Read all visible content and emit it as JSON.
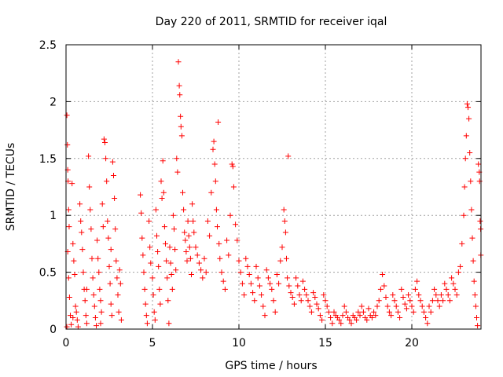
{
  "chart_data": {
    "type": "scatter",
    "title": "Day 220 of 2011, SRMTID for receiver iqal",
    "xlabel": "GPS time / hours",
    "ylabel": "SRMTID / TECUs",
    "xlim": [
      0,
      24
    ],
    "ylim": [
      0,
      2.5
    ],
    "xticks": [
      0,
      5,
      10,
      15,
      20
    ],
    "xtick_labels": [
      "0",
      "5",
      "10",
      "15",
      "20"
    ],
    "yticks": [
      0,
      0.5,
      1,
      1.5,
      2,
      2.5
    ],
    "ytick_labels": [
      "0",
      "0.5",
      "1",
      "1.5",
      "2",
      "2.5"
    ],
    "grid": true,
    "marker": "+",
    "color": "#ff0000",
    "series": [
      {
        "name": "SRMTID",
        "points": [
          [
            0.05,
            1.88
          ],
          [
            0.08,
            1.62
          ],
          [
            0.1,
            1.4
          ],
          [
            0.12,
            1.3
          ],
          [
            0.15,
            1.05
          ],
          [
            0.18,
            0.9
          ],
          [
            0.1,
            0.68
          ],
          [
            0.15,
            0.45
          ],
          [
            0.2,
            0.28
          ],
          [
            0.25,
            0.12
          ],
          [
            0.05,
            0.02
          ],
          [
            0.3,
            0.04
          ],
          [
            0.35,
            1.28
          ],
          [
            0.4,
            0.75
          ],
          [
            0.45,
            0.6
          ],
          [
            0.5,
            0.48
          ],
          [
            0.55,
            0.2
          ],
          [
            0.6,
            0.15
          ],
          [
            0.65,
            0.08
          ],
          [
            0.7,
            0.02
          ],
          [
            0.8,
            1.1
          ],
          [
            0.85,
            0.95
          ],
          [
            0.9,
            0.85
          ],
          [
            0.95,
            0.7
          ],
          [
            1.0,
            0.5
          ],
          [
            1.05,
            0.35
          ],
          [
            1.1,
            0.25
          ],
          [
            1.15,
            0.12
          ],
          [
            1.2,
            0.05
          ],
          [
            1.3,
            1.52
          ],
          [
            1.35,
            1.25
          ],
          [
            1.4,
            1.05
          ],
          [
            1.45,
            0.88
          ],
          [
            1.5,
            0.62
          ],
          [
            1.55,
            0.45
          ],
          [
            1.6,
            0.3
          ],
          [
            1.65,
            0.2
          ],
          [
            1.7,
            0.1
          ],
          [
            1.75,
            0.03
          ],
          [
            1.8,
            0.78
          ],
          [
            1.85,
            0.62
          ],
          [
            1.9,
            0.5
          ],
          [
            1.95,
            0.35
          ],
          [
            2.0,
            0.25
          ],
          [
            2.05,
            0.15
          ],
          [
            2.1,
            1.1
          ],
          [
            2.15,
            0.9
          ],
          [
            2.2,
            1.67
          ],
          [
            2.25,
            1.64
          ],
          [
            2.3,
            1.5
          ],
          [
            2.35,
            1.3
          ],
          [
            2.4,
            0.95
          ],
          [
            2.45,
            0.8
          ],
          [
            2.5,
            0.55
          ],
          [
            2.55,
            0.4
          ],
          [
            2.6,
            0.22
          ],
          [
            2.65,
            0.12
          ],
          [
            2.7,
            1.47
          ],
          [
            2.75,
            1.35
          ],
          [
            2.8,
            1.15
          ],
          [
            2.85,
            0.88
          ],
          [
            2.9,
            0.6
          ],
          [
            2.95,
            0.45
          ],
          [
            3.0,
            0.3
          ],
          [
            3.05,
            0.15
          ],
          [
            3.1,
            0.52
          ],
          [
            3.15,
            0.4
          ],
          [
            3.2,
            0.08
          ],
          [
            2.0,
            0.05
          ],
          [
            1.2,
            0.35
          ],
          [
            0.4,
            0.1
          ],
          [
            2.6,
            0.7
          ],
          [
            4.3,
            1.18
          ],
          [
            4.35,
            1.02
          ],
          [
            4.4,
            0.8
          ],
          [
            4.45,
            0.65
          ],
          [
            4.5,
            0.5
          ],
          [
            4.55,
            0.35
          ],
          [
            4.6,
            0.22
          ],
          [
            4.65,
            0.12
          ],
          [
            4.7,
            0.05
          ],
          [
            4.8,
            0.95
          ],
          [
            4.85,
            0.72
          ],
          [
            4.9,
            0.58
          ],
          [
            5.0,
            0.45
          ],
          [
            5.05,
            0.3
          ],
          [
            5.1,
            0.15
          ],
          [
            5.15,
            0.08
          ],
          [
            5.2,
            1.05
          ],
          [
            5.25,
            0.82
          ],
          [
            5.3,
            0.68
          ],
          [
            5.35,
            0.55
          ],
          [
            5.4,
            0.35
          ],
          [
            5.45,
            0.22
          ],
          [
            5.5,
            1.3
          ],
          [
            5.55,
            1.15
          ],
          [
            5.6,
            1.48
          ],
          [
            5.65,
            1.2
          ],
          [
            5.7,
            0.9
          ],
          [
            5.75,
            0.75
          ],
          [
            5.8,
            0.6
          ],
          [
            5.85,
            0.45
          ],
          [
            5.9,
            0.25
          ],
          [
            5.95,
            0.05
          ],
          [
            6.0,
            0.72
          ],
          [
            6.05,
            0.58
          ],
          [
            6.1,
            0.48
          ],
          [
            6.15,
            0.35
          ],
          [
            6.2,
            1.0
          ],
          [
            6.25,
            0.88
          ],
          [
            6.3,
            0.7
          ],
          [
            6.35,
            0.52
          ],
          [
            6.4,
            1.5
          ],
          [
            6.45,
            1.38
          ],
          [
            6.5,
            2.35
          ],
          [
            6.55,
            2.14
          ],
          [
            6.58,
            2.06
          ],
          [
            6.62,
            1.87
          ],
          [
            6.65,
            1.78
          ],
          [
            6.7,
            1.7
          ],
          [
            6.75,
            1.2
          ],
          [
            6.8,
            1.05
          ],
          [
            6.85,
            0.85
          ],
          [
            6.9,
            0.78
          ],
          [
            6.95,
            0.68
          ],
          [
            7.0,
            0.6
          ],
          [
            7.05,
            0.95
          ],
          [
            7.1,
            0.82
          ],
          [
            7.15,
            0.72
          ],
          [
            7.2,
            0.62
          ],
          [
            7.25,
            0.48
          ],
          [
            7.3,
            1.1
          ],
          [
            7.35,
            0.95
          ],
          [
            7.4,
            0.85
          ],
          [
            7.5,
            0.72
          ],
          [
            7.6,
            0.65
          ],
          [
            7.7,
            0.58
          ],
          [
            7.8,
            0.52
          ],
          [
            7.9,
            0.45
          ],
          [
            8.0,
            0.62
          ],
          [
            8.1,
            0.5
          ],
          [
            8.2,
            0.95
          ],
          [
            8.3,
            0.82
          ],
          [
            8.4,
            1.2
          ],
          [
            8.5,
            1.58
          ],
          [
            8.55,
            1.65
          ],
          [
            8.6,
            1.45
          ],
          [
            8.65,
            1.3
          ],
          [
            8.7,
            1.05
          ],
          [
            8.75,
            0.9
          ],
          [
            8.8,
            1.82
          ],
          [
            8.85,
            0.75
          ],
          [
            8.9,
            0.62
          ],
          [
            9.0,
            0.5
          ],
          [
            9.1,
            0.42
          ],
          [
            9.2,
            0.35
          ],
          [
            9.3,
            0.78
          ],
          [
            9.4,
            0.65
          ],
          [
            9.5,
            1.0
          ],
          [
            9.6,
            1.45
          ],
          [
            9.65,
            1.43
          ],
          [
            9.7,
            1.25
          ],
          [
            9.8,
            0.92
          ],
          [
            9.9,
            0.78
          ],
          [
            10.0,
            0.6
          ],
          [
            10.1,
            0.5
          ],
          [
            10.2,
            0.4
          ],
          [
            10.3,
            0.3
          ],
          [
            10.4,
            0.62
          ],
          [
            10.5,
            0.55
          ],
          [
            10.6,
            0.48
          ],
          [
            10.7,
            0.4
          ],
          [
            10.8,
            0.32
          ],
          [
            10.9,
            0.25
          ],
          [
            11.0,
            0.55
          ],
          [
            11.1,
            0.45
          ],
          [
            11.2,
            0.38
          ],
          [
            11.3,
            0.3
          ],
          [
            11.4,
            0.2
          ],
          [
            11.5,
            0.12
          ],
          [
            11.6,
            0.52
          ],
          [
            11.7,
            0.45
          ],
          [
            11.8,
            0.4
          ],
          [
            11.9,
            0.35
          ],
          [
            12.0,
            0.25
          ],
          [
            12.1,
            0.15
          ],
          [
            12.2,
            0.48
          ],
          [
            12.3,
            0.4
          ],
          [
            12.4,
            0.6
          ],
          [
            12.5,
            0.72
          ],
          [
            12.6,
            1.05
          ],
          [
            12.65,
            0.95
          ],
          [
            12.7,
            0.85
          ],
          [
            12.75,
            0.62
          ],
          [
            12.8,
            0.45
          ],
          [
            12.85,
            1.52
          ],
          [
            12.9,
            0.38
          ],
          [
            13.0,
            0.32
          ],
          [
            13.1,
            0.28
          ],
          [
            13.2,
            0.22
          ],
          [
            13.3,
            0.45
          ],
          [
            13.4,
            0.38
          ],
          [
            13.5,
            0.3
          ],
          [
            13.6,
            0.25
          ],
          [
            13.7,
            0.42
          ],
          [
            13.8,
            0.35
          ],
          [
            13.9,
            0.3
          ],
          [
            14.0,
            0.25
          ],
          [
            14.1,
            0.2
          ],
          [
            14.2,
            0.15
          ],
          [
            14.3,
            0.32
          ],
          [
            14.4,
            0.28
          ],
          [
            14.5,
            0.22
          ],
          [
            14.6,
            0.18
          ],
          [
            14.7,
            0.12
          ],
          [
            14.8,
            0.08
          ],
          [
            14.9,
            0.3
          ],
          [
            15.0,
            0.25
          ],
          [
            15.1,
            0.2
          ],
          [
            15.2,
            0.15
          ],
          [
            15.3,
            0.1
          ],
          [
            15.4,
            0.05
          ],
          [
            15.5,
            0.15
          ],
          [
            15.6,
            0.12
          ],
          [
            15.7,
            0.1
          ],
          [
            15.8,
            0.08
          ],
          [
            15.9,
            0.05
          ],
          [
            16.0,
            0.12
          ],
          [
            16.1,
            0.2
          ],
          [
            16.2,
            0.15
          ],
          [
            16.3,
            0.1
          ],
          [
            16.4,
            0.08
          ],
          [
            16.5,
            0.05
          ],
          [
            16.6,
            0.12
          ],
          [
            16.7,
            0.1
          ],
          [
            16.8,
            0.08
          ],
          [
            16.9,
            0.15
          ],
          [
            17.0,
            0.12
          ],
          [
            17.1,
            0.2
          ],
          [
            17.2,
            0.15
          ],
          [
            17.3,
            0.1
          ],
          [
            17.4,
            0.08
          ],
          [
            17.5,
            0.18
          ],
          [
            17.6,
            0.12
          ],
          [
            17.7,
            0.1
          ],
          [
            17.8,
            0.15
          ],
          [
            17.9,
            0.12
          ],
          [
            18.0,
            0.2
          ],
          [
            18.1,
            0.25
          ],
          [
            18.2,
            0.35
          ],
          [
            18.3,
            0.48
          ],
          [
            18.4,
            0.38
          ],
          [
            18.5,
            0.28
          ],
          [
            18.6,
            0.2
          ],
          [
            18.7,
            0.15
          ],
          [
            18.8,
            0.12
          ],
          [
            18.9,
            0.3
          ],
          [
            19.0,
            0.25
          ],
          [
            19.1,
            0.2
          ],
          [
            19.2,
            0.15
          ],
          [
            19.3,
            0.1
          ],
          [
            19.4,
            0.35
          ],
          [
            19.5,
            0.28
          ],
          [
            19.6,
            0.22
          ],
          [
            19.7,
            0.18
          ],
          [
            19.8,
            0.3
          ],
          [
            19.9,
            0.25
          ],
          [
            20.0,
            0.2
          ],
          [
            20.1,
            0.15
          ],
          [
            20.2,
            0.35
          ],
          [
            20.3,
            0.42
          ],
          [
            20.4,
            0.3
          ],
          [
            20.5,
            0.25
          ],
          [
            20.6,
            0.2
          ],
          [
            20.7,
            0.15
          ],
          [
            20.8,
            0.1
          ],
          [
            20.9,
            0.05
          ],
          [
            21.0,
            0.2
          ],
          [
            21.1,
            0.15
          ],
          [
            21.2,
            0.25
          ],
          [
            21.3,
            0.35
          ],
          [
            21.4,
            0.3
          ],
          [
            21.5,
            0.25
          ],
          [
            21.6,
            0.2
          ],
          [
            21.7,
            0.3
          ],
          [
            21.8,
            0.25
          ],
          [
            21.9,
            0.4
          ],
          [
            22.0,
            0.35
          ],
          [
            22.1,
            0.3
          ],
          [
            22.2,
            0.25
          ],
          [
            22.3,
            0.45
          ],
          [
            22.4,
            0.4
          ],
          [
            22.5,
            0.35
          ],
          [
            22.6,
            0.3
          ],
          [
            22.7,
            0.5
          ],
          [
            22.8,
            0.55
          ],
          [
            22.9,
            0.75
          ],
          [
            23.0,
            1.0
          ],
          [
            23.05,
            1.25
          ],
          [
            23.1,
            1.5
          ],
          [
            23.15,
            1.7
          ],
          [
            23.2,
            1.98
          ],
          [
            23.25,
            1.95
          ],
          [
            23.3,
            1.85
          ],
          [
            23.35,
            1.55
          ],
          [
            23.4,
            1.3
          ],
          [
            23.45,
            1.05
          ],
          [
            23.5,
            0.8
          ],
          [
            23.55,
            0.6
          ],
          [
            23.6,
            0.42
          ],
          [
            23.65,
            0.3
          ],
          [
            23.7,
            0.2
          ],
          [
            23.75,
            0.1
          ],
          [
            23.8,
            0.03
          ],
          [
            23.85,
            1.45
          ],
          [
            23.9,
            1.38
          ],
          [
            23.92,
            1.3
          ],
          [
            23.95,
            0.95
          ],
          [
            23.98,
            0.88
          ],
          [
            23.99,
            0.65
          ]
        ]
      }
    ]
  }
}
